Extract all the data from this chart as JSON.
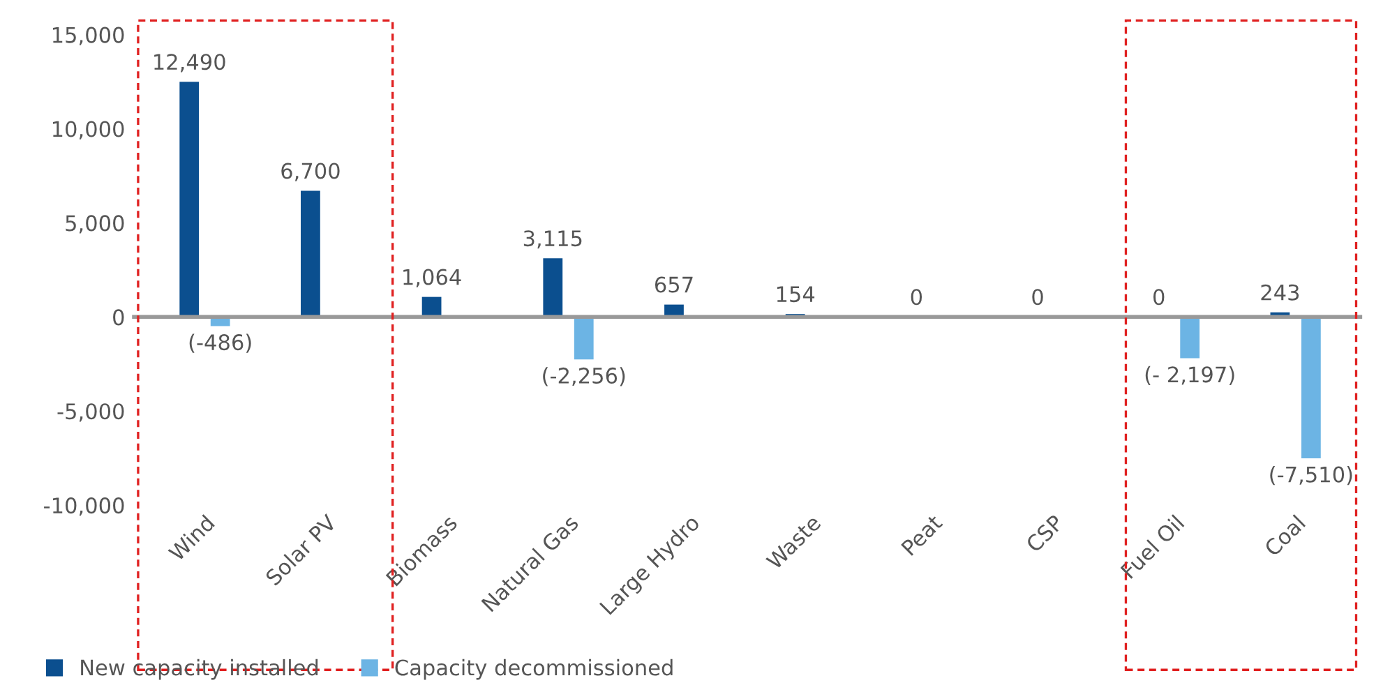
{
  "chart_data": {
    "type": "bar",
    "categories": [
      "Wind",
      "Solar PV",
      "Biomass",
      "Natural Gas",
      "Large Hydro",
      "Waste",
      "Peat",
      "CSP",
      "Fuel Oil",
      "Coal"
    ],
    "series": [
      {
        "name": "New capacity installed",
        "color": "#0b4f8f",
        "values": [
          12490,
          6700,
          1064,
          3115,
          657,
          154,
          0,
          0,
          0,
          243
        ],
        "value_labels": [
          "12,490",
          "6,700",
          "1,064",
          "3,115",
          "657",
          "154",
          "0",
          "0",
          "0",
          "243"
        ]
      },
      {
        "name": "Capacity decommissioned",
        "color": "#6cb4e4",
        "values": [
          -486,
          null,
          null,
          -2256,
          null,
          null,
          null,
          null,
          -2197,
          -7510
        ],
        "value_labels": [
          "(-486)",
          null,
          null,
          "(-2,256)",
          null,
          null,
          null,
          null,
          "(- 2,197)",
          "(-7,510)"
        ]
      }
    ],
    "ylim": [
      -10000,
      15000
    ],
    "yticks": [
      {
        "value": -10000,
        "label": "-10,000"
      },
      {
        "value": -5000,
        "label": "-5,000"
      },
      0,
      {
        "value": 5000,
        "label": "5,000"
      },
      {
        "value": 10000,
        "label": "10,000"
      },
      {
        "value": 15000,
        "label": "15,000"
      }
    ],
    "legend": "bottom left"
  }
}
